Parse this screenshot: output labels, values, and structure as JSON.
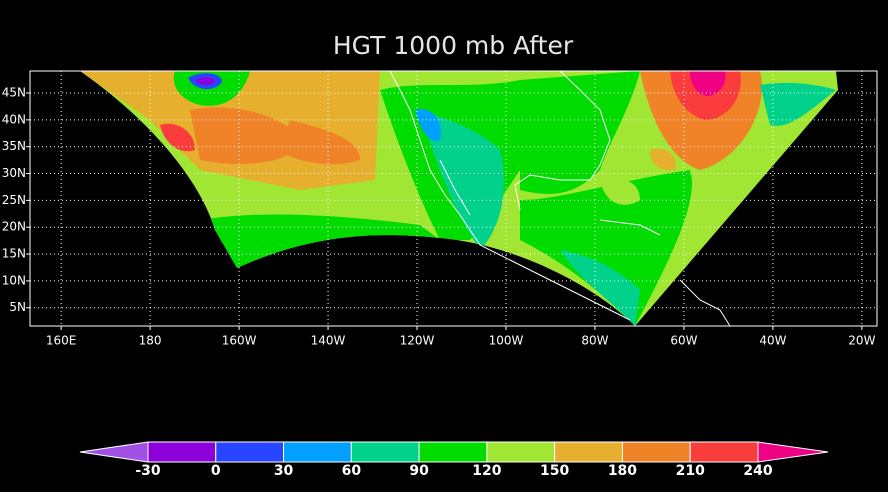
{
  "title": "HGT 1000 mb After",
  "map": {
    "xlim": [
      153,
      343.4
    ],
    "ylim": [
      1.6,
      49.1
    ],
    "xticks": [
      {
        "value": 160,
        "label": "160E"
      },
      {
        "value": 180,
        "label": "180"
      },
      {
        "value": 200,
        "label": "160W"
      },
      {
        "value": 220,
        "label": "140W"
      },
      {
        "value": 240,
        "label": "120W"
      },
      {
        "value": 260,
        "label": "100W"
      },
      {
        "value": 280,
        "label": "80W"
      },
      {
        "value": 300,
        "label": "60W"
      },
      {
        "value": 320,
        "label": "40W"
      },
      {
        "value": 340,
        "label": "20W"
      }
    ],
    "yticks": [
      {
        "value": 5,
        "label": "5N"
      },
      {
        "value": 10,
        "label": "10N"
      },
      {
        "value": 15,
        "label": "15N"
      },
      {
        "value": 20,
        "label": "20N"
      },
      {
        "value": 25,
        "label": "25N"
      },
      {
        "value": 30,
        "label": "30N"
      },
      {
        "value": 35,
        "label": "35N"
      },
      {
        "value": 40,
        "label": "40N"
      },
      {
        "value": 45,
        "label": "45N"
      }
    ],
    "grid": true
  },
  "colorbar": {
    "levels": [
      -30,
      0,
      30,
      60,
      90,
      120,
      150,
      180,
      210,
      240
    ],
    "colors": [
      "#a050e6",
      "#8c00dc",
      "#2846ff",
      "#00a0ff",
      "#00d28c",
      "#00dc00",
      "#a0e632",
      "#e6af2d",
      "#f08228",
      "#fa3c3c",
      "#f00082"
    ]
  }
}
